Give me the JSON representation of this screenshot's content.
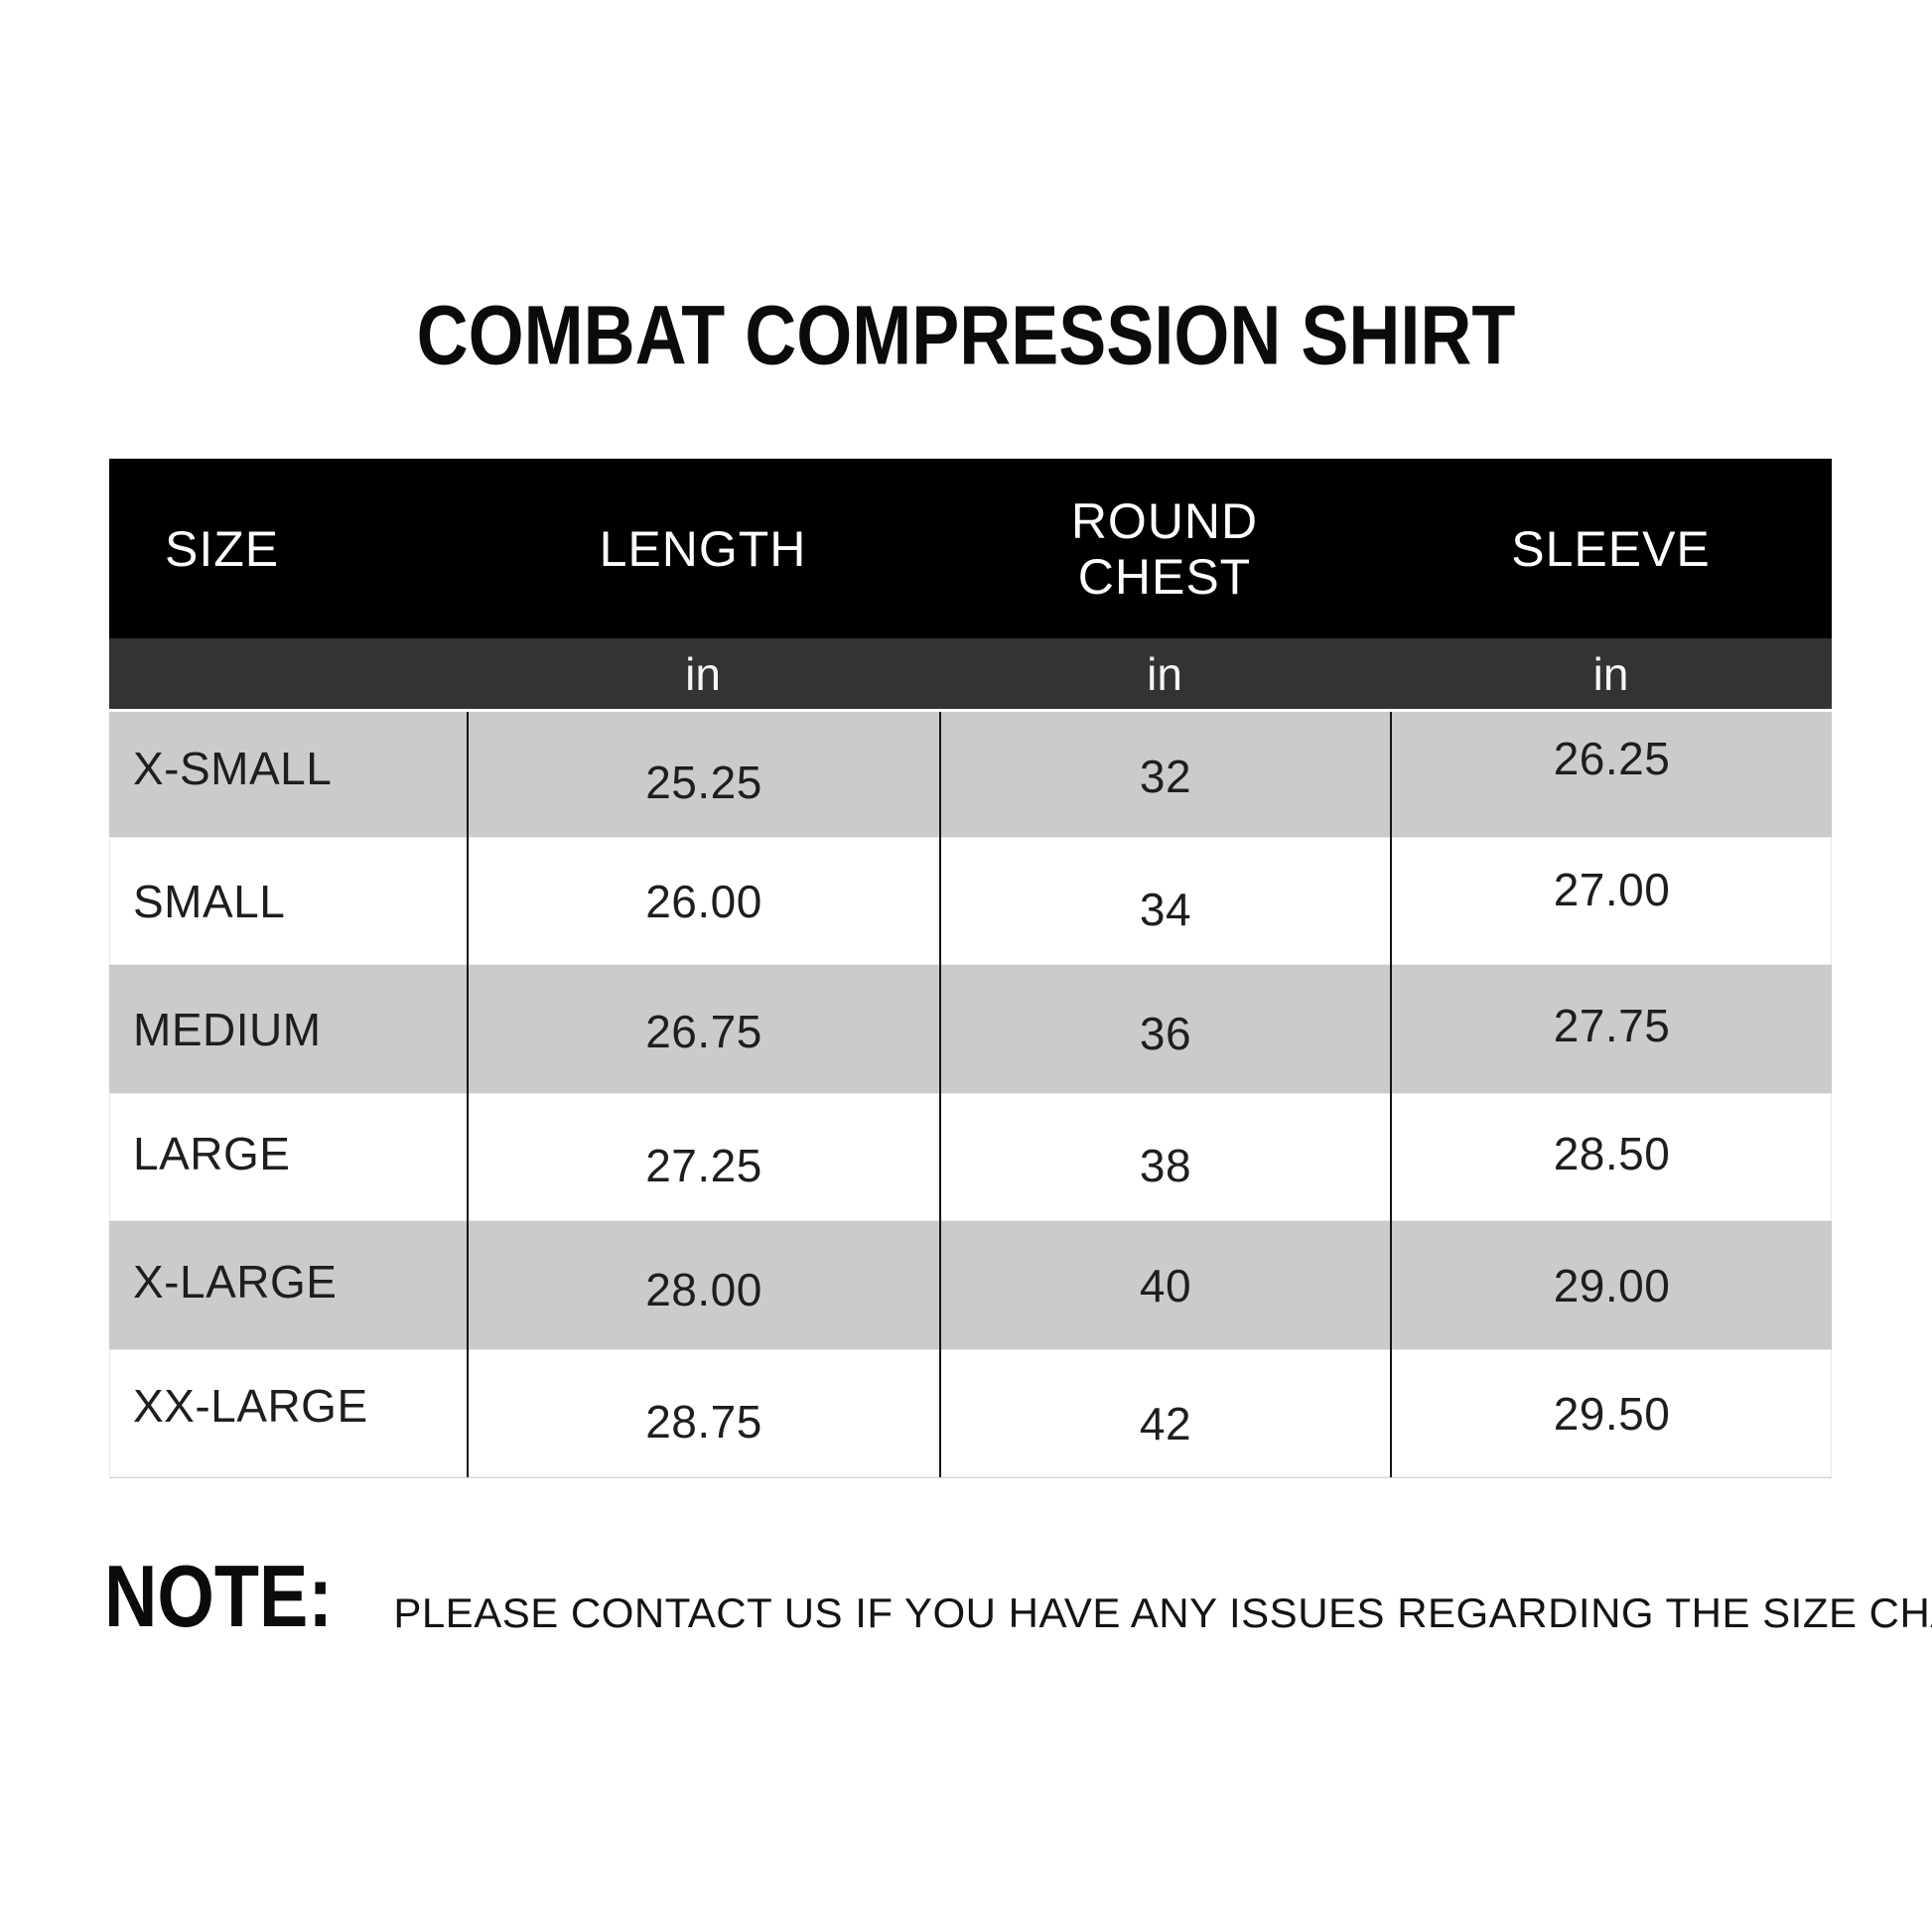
{
  "title": "COMBAT COMPRESSION SHIRT",
  "table": {
    "headers": [
      "SIZE",
      "LENGTH",
      "ROUND CHEST",
      "SLEEVE"
    ],
    "units": [
      "",
      "in",
      "in",
      "in"
    ],
    "rows": [
      [
        "X-SMALL",
        "25.25",
        "32",
        "26.25"
      ],
      [
        "SMALL",
        "26.00",
        "34",
        "27.00"
      ],
      [
        "MEDIUM",
        "26.75",
        "36",
        "27.75"
      ],
      [
        "LARGE",
        "27.25",
        "38",
        "28.50"
      ],
      [
        "X-LARGE",
        "28.00",
        "40",
        "29.00"
      ],
      [
        "XX-LARGE",
        "28.75",
        "42",
        "29.50"
      ]
    ]
  },
  "note": {
    "label": "NOTE:",
    "text": "PLEASE CONTACT US IF YOU HAVE ANY ISSUES REGARDING THE SIZE CHART"
  },
  "colors": {
    "header_bg": "#000000",
    "unit_bar_bg": "#333333",
    "alt_row_bg": "#cbcbcb",
    "row_bg": "#ffffff",
    "divider": "#161616",
    "header_text": "#ffffff",
    "body_text": "#1e1e1e"
  },
  "chart_data": {
    "type": "table",
    "title": "COMBAT COMPRESSION SHIRT",
    "columns": [
      "SIZE",
      "LENGTH (in)",
      "ROUND CHEST (in)",
      "SLEEVE (in)"
    ],
    "rows": [
      {
        "size": "X-SMALL",
        "length_in": 25.25,
        "round_chest_in": 32,
        "sleeve_in": 26.25
      },
      {
        "size": "SMALL",
        "length_in": 26.0,
        "round_chest_in": 34,
        "sleeve_in": 27.0
      },
      {
        "size": "MEDIUM",
        "length_in": 26.75,
        "round_chest_in": 36,
        "sleeve_in": 27.75
      },
      {
        "size": "LARGE",
        "length_in": 27.25,
        "round_chest_in": 38,
        "sleeve_in": 28.5
      },
      {
        "size": "X-LARGE",
        "length_in": 28.0,
        "round_chest_in": 40,
        "sleeve_in": 29.0
      },
      {
        "size": "XX-LARGE",
        "length_in": 28.75,
        "round_chest_in": 42,
        "sleeve_in": 29.5
      }
    ],
    "note": "NOTE: PLEASE CONTACT US IF YOU HAVE ANY ISSUES REGARDING THE SIZE CHART"
  }
}
